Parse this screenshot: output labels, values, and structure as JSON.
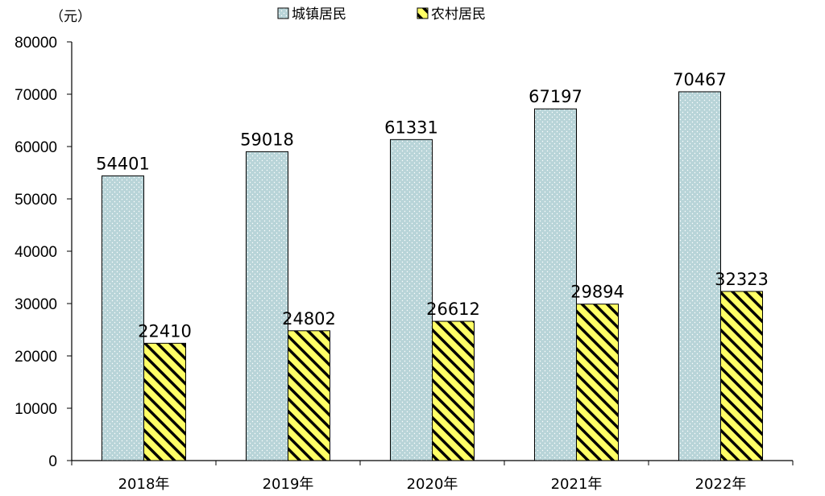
{
  "chart_data": {
    "type": "bar",
    "unit_label": "（元）",
    "categories": [
      "2018年",
      "2019年",
      "2020年",
      "2021年",
      "2022年"
    ],
    "series": [
      {
        "name": "城镇居民",
        "values": [
          54401,
          59018,
          61331,
          67197,
          70467
        ],
        "color": "#b8d4d8"
      },
      {
        "name": "农村居民",
        "values": [
          22410,
          24802,
          26612,
          29894,
          32323
        ],
        "color": "#ffff66"
      }
    ],
    "ylim": [
      0,
      80000
    ],
    "yticks": [
      0,
      10000,
      20000,
      30000,
      40000,
      50000,
      60000,
      70000,
      80000
    ],
    "data_labels": true,
    "legend_position": "top-center",
    "grid": false
  }
}
